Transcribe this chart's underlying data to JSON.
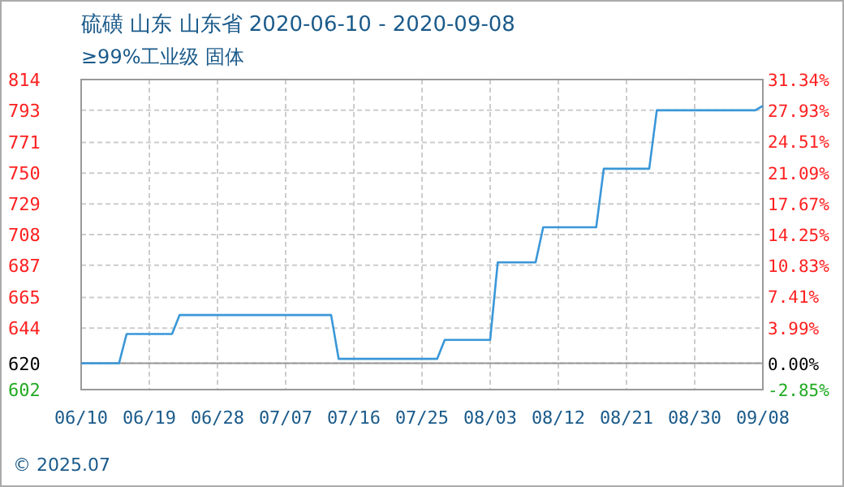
{
  "chart_data": {
    "type": "line",
    "title": "硫磺 山东 山东省 2020-06-10 - 2020-09-08",
    "subtitle": "≥99%工业级 固体",
    "x": [
      "2020-06-10",
      "2020-06-15",
      "2020-06-16",
      "2020-06-22",
      "2020-06-23",
      "2020-07-13",
      "2020-07-14",
      "2020-07-27",
      "2020-07-28",
      "2020-08-03",
      "2020-08-04",
      "2020-08-09",
      "2020-08-10",
      "2020-08-17",
      "2020-08-18",
      "2020-08-24",
      "2020-08-25",
      "2020-09-07",
      "2020-09-08"
    ],
    "series": [
      {
        "color": "#3a97d8",
        "values": [
          620,
          620,
          640,
          640,
          653,
          653,
          623,
          623,
          636,
          636,
          689,
          689,
          713,
          713,
          753,
          753,
          793,
          793,
          796
        ]
      }
    ],
    "xlim": [
      "2020-06-10",
      "2020-09-08"
    ],
    "xticks": [
      {
        "value": "2020-06-10",
        "label": "06/10"
      },
      {
        "value": "2020-06-19",
        "label": "06/19"
      },
      {
        "value": "2020-06-28",
        "label": "06/28"
      },
      {
        "value": "2020-07-07",
        "label": "07/07"
      },
      {
        "value": "2020-07-16",
        "label": "07/16"
      },
      {
        "value": "2020-07-25",
        "label": "07/25"
      },
      {
        "value": "2020-08-03",
        "label": "08/03"
      },
      {
        "value": "2020-08-12",
        "label": "08/12"
      },
      {
        "value": "2020-08-21",
        "label": "08/21"
      },
      {
        "value": "2020-08-30",
        "label": "08/30"
      },
      {
        "value": "2020-09-08",
        "label": "09/08"
      }
    ],
    "ylim": [
      602,
      814
    ],
    "yticks": [
      602,
      620,
      644,
      665,
      687,
      708,
      729,
      750,
      771,
      793,
      814
    ],
    "y2lim": [
      -2.85,
      31.34
    ],
    "y2ticks": [
      {
        "value": -2.85,
        "label": "-2.85%"
      },
      {
        "value": 0,
        "label": "0.00%"
      },
      {
        "value": 3.99,
        "label": "3.99%"
      },
      {
        "value": 7.41,
        "label": "7.41%"
      },
      {
        "value": 10.83,
        "label": "10.83%"
      },
      {
        "value": 14.25,
        "label": "14.25%"
      },
      {
        "value": 17.67,
        "label": "17.67%"
      },
      {
        "value": 21.09,
        "label": "21.09%"
      },
      {
        "value": 24.51,
        "label": "24.51%"
      },
      {
        "value": 27.93,
        "label": "27.93%"
      },
      {
        "value": 31.34,
        "label": "31.34%"
      }
    ],
    "ref_lines": [
      {
        "axis": "y",
        "value": 620,
        "color": "#999999"
      }
    ],
    "grid": true,
    "line_style": "solid",
    "marker": "none",
    "annotations": [
      "© 2025.07"
    ]
  }
}
